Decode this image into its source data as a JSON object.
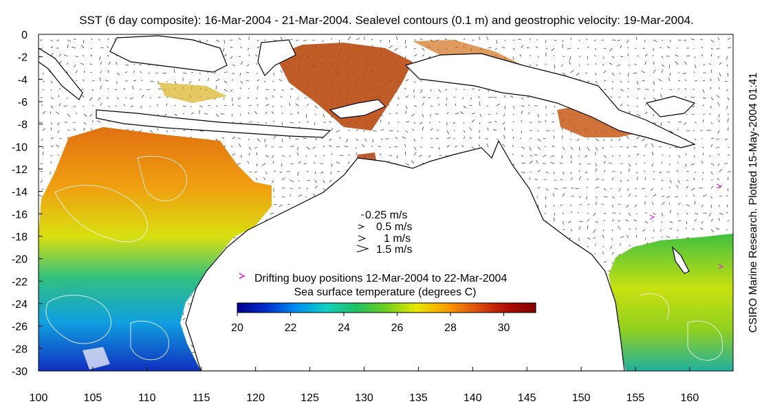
{
  "title": "SST (6 day composite): 16-Mar-2004 - 21-Mar-2004. Sealevel contours (0.1 m) and geostrophic velocity: 19-Mar-2004.",
  "credit": "CSIRO Marine Research. Plotted 15-May-2004 01:41",
  "map": {
    "lon_range": [
      100,
      164
    ],
    "lat_range": [
      -30,
      0
    ],
    "x_ticks": [
      100,
      105,
      110,
      115,
      120,
      125,
      130,
      135,
      140,
      145,
      150,
      155,
      160
    ],
    "y_ticks": [
      0,
      -2,
      -4,
      -6,
      -8,
      -10,
      -12,
      -14,
      -16,
      -18,
      -20,
      -22,
      -24,
      -26,
      -28,
      -30
    ],
    "land_color": "#ffffff",
    "coast_color": "#000000"
  },
  "velocity_legend": {
    "items": [
      {
        "label": "0.25 m/s"
      },
      {
        "label": "0.5 m/s"
      },
      {
        "label": "1 m/s"
      },
      {
        "label": "1.5 m/s"
      }
    ]
  },
  "buoy_legend": {
    "label": "Drifting buoy positions 12-Mar-2004 to 22-Mar-2004",
    "color": "#e020e0"
  },
  "colorbar": {
    "title": "Sea surface temperature (degrees C)",
    "min": 20,
    "max": 31.2,
    "ticks": [
      20,
      22,
      24,
      26,
      28,
      30
    ],
    "colors": [
      "#00008c",
      "#0030d0",
      "#0090f0",
      "#10d0c0",
      "#20c060",
      "#70d020",
      "#e8e800",
      "#f8a000",
      "#e05010",
      "#b01000",
      "#800000"
    ]
  }
}
